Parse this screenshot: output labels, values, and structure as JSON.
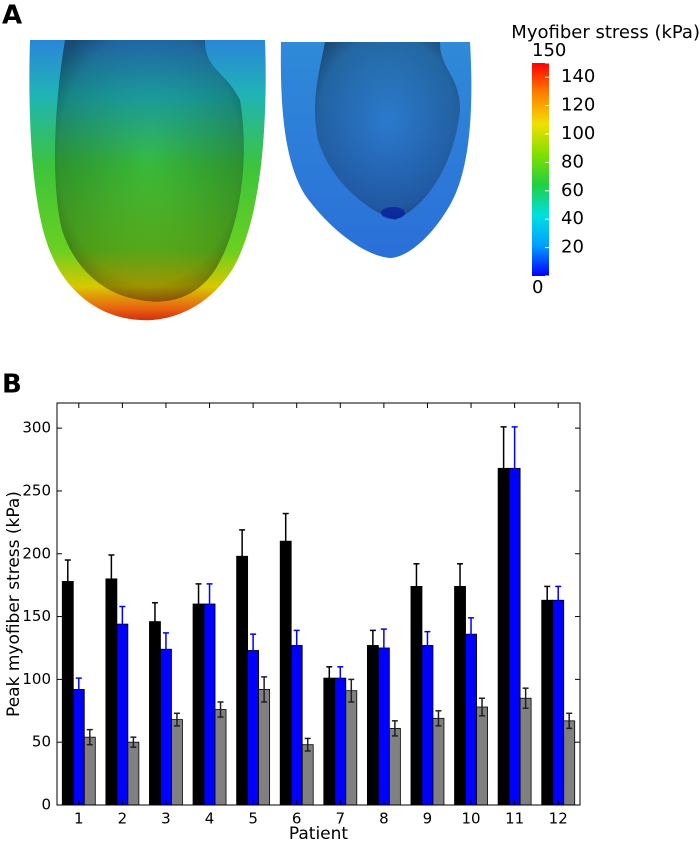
{
  "chart_data": [
    {
      "type": "colorbar",
      "panel_label": "A",
      "title": "Myofiber stress (kPa)",
      "clim": [
        0,
        150
      ],
      "ticks": [
        0,
        20,
        40,
        60,
        80,
        100,
        120,
        140,
        150
      ],
      "colors": [
        "#0000ff",
        "#00a0ff",
        "#00e0e0",
        "#20d040",
        "#80e000",
        "#f0e000",
        "#ff8000",
        "#ff0000"
      ]
    },
    {
      "type": "bar",
      "panel_label": "B",
      "xlabel": "Patient",
      "ylabel": "Peak myofiber stress (kPa)",
      "categories": [
        "1",
        "2",
        "3",
        "4",
        "5",
        "6",
        "7",
        "8",
        "9",
        "10",
        "11",
        "12"
      ],
      "series": [
        {
          "color": "#000000",
          "error_color": "#000000",
          "values": [
            178,
            180,
            146,
            160,
            198,
            210,
            101,
            127,
            174,
            174,
            268,
            163
          ],
          "errors": [
            17,
            19,
            15,
            16,
            21,
            22,
            9,
            12,
            18,
            18,
            33,
            11
          ]
        },
        {
          "color": "#0000ff",
          "error_color": "#0000ff",
          "values": [
            92,
            144,
            124,
            160,
            123,
            127,
            101,
            125,
            127,
            136,
            268,
            163
          ],
          "errors": [
            9,
            14,
            13,
            16,
            13,
            12,
            9,
            15,
            11,
            13,
            33,
            11
          ]
        },
        {
          "color": "#808080",
          "error_color": "#202020",
          "values": [
            54,
            50,
            68,
            76,
            92,
            48,
            91,
            61,
            69,
            78,
            85,
            67
          ],
          "errors": [
            6,
            4,
            5,
            6,
            10,
            5,
            9,
            6,
            6,
            7,
            8,
            6
          ]
        }
      ],
      "ylim": [
        0,
        320
      ],
      "yticks": [
        0,
        50,
        100,
        150,
        200,
        250,
        300
      ]
    }
  ]
}
